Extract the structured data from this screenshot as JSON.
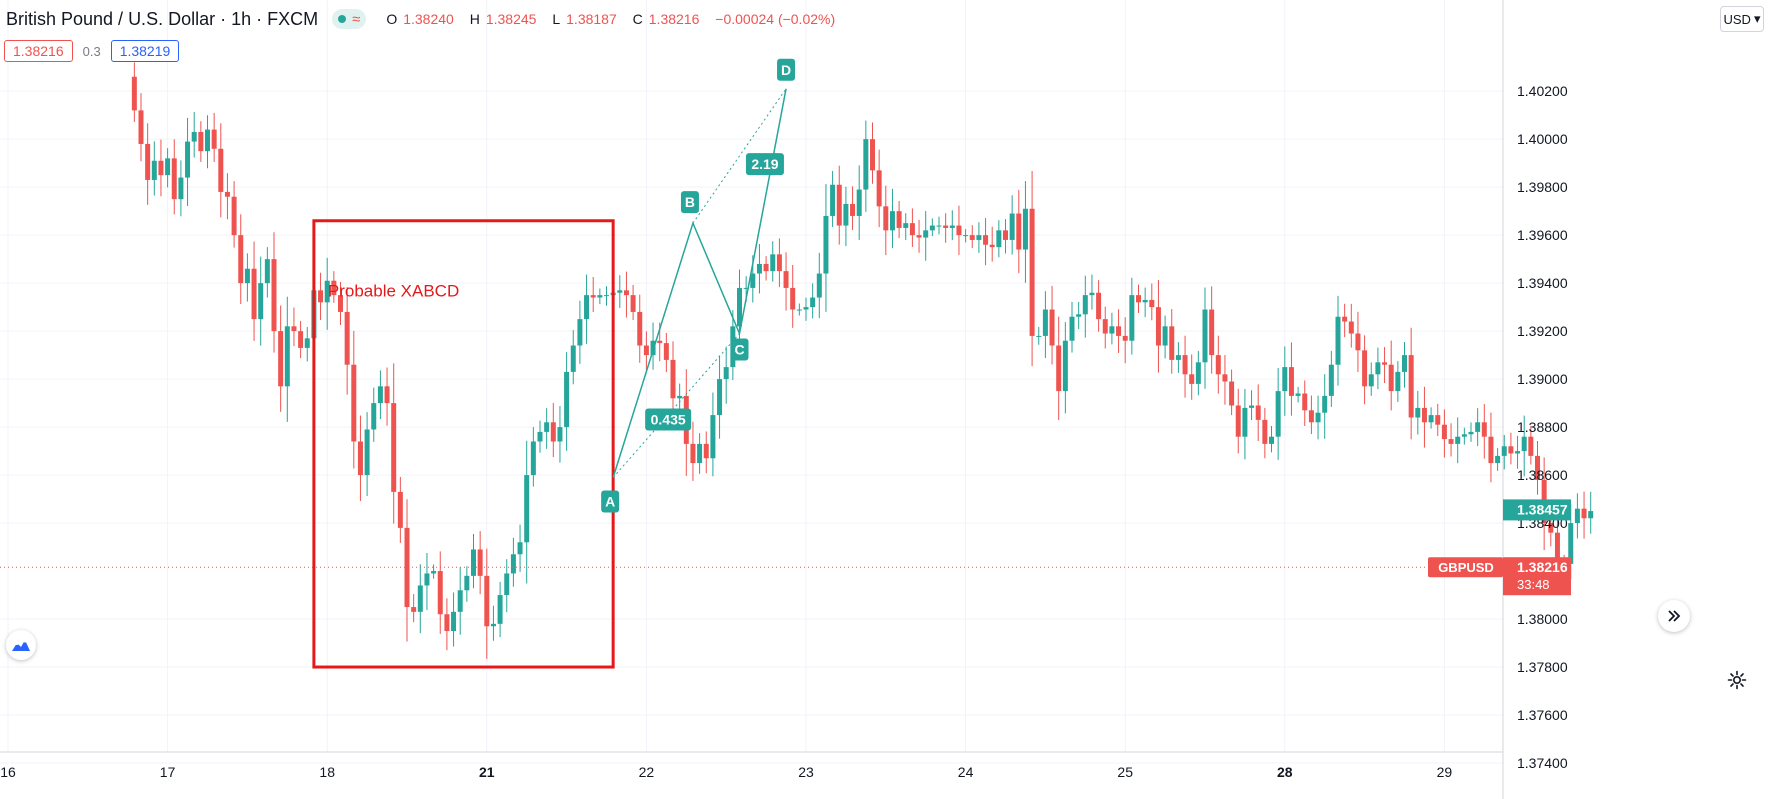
{
  "header": {
    "symbol_title": "British Pound / U.S. Dollar · 1h · FXCM",
    "ohlc": {
      "o_label": "O",
      "o": "1.38240",
      "h_label": "H",
      "h": "1.38245",
      "l_label": "L",
      "l": "1.38187",
      "c_label": "C",
      "c": "1.38216",
      "change": "−0.00024 (−0.02%)"
    },
    "sell_price": "1.38216",
    "spread": "0.3",
    "buy_price": "1.38219",
    "currency_button": "USD",
    "currency_caret": "▾"
  },
  "colors": {
    "up": "#26a69a",
    "down": "#ef5350",
    "pattern": "#26a69a",
    "box": "#e41a1a",
    "grid": "#f0f3fa",
    "axis_text": "#131722"
  },
  "chart_data": {
    "type": "candlestick",
    "x_ticks": [
      {
        "label": "16",
        "idx": 0
      },
      {
        "label": "17",
        "idx": 24
      },
      {
        "label": "18",
        "idx": 48
      },
      {
        "label": "21",
        "idx": 72
      },
      {
        "label": "22",
        "idx": 96
      },
      {
        "label": "23",
        "idx": 120
      },
      {
        "label": "24",
        "idx": 144
      },
      {
        "label": "25",
        "idx": 168
      },
      {
        "label": "28",
        "idx": 192
      },
      {
        "label": "29",
        "idx": 216
      }
    ],
    "bold_ticks": [
      "21",
      "28"
    ],
    "y_ticks": [
      "1.40200",
      "1.40000",
      "1.39800",
      "1.39600",
      "1.39400",
      "1.39200",
      "1.39000",
      "1.38800",
      "1.38600",
      "1.38400",
      "1.38000",
      "1.37800",
      "1.37600",
      "1.37400"
    ],
    "ylim": [
      1.3725,
      1.4058
    ],
    "candle_count": 232,
    "first_candle_index": 19,
    "closes": [
      1.4012,
      1.3998,
      1.3983,
      1.3991,
      1.3985,
      1.3992,
      1.3975,
      1.3984,
      1.3999,
      1.4003,
      1.3995,
      1.4004,
      1.3996,
      1.3978,
      1.3976,
      1.396,
      1.394,
      1.3946,
      1.3925,
      1.394,
      1.395,
      1.392,
      1.3897,
      1.3922,
      1.392,
      1.3913,
      1.3917,
      1.3937,
      1.3932,
      1.3941,
      1.3935,
      1.3928,
      1.3906,
      1.3874,
      1.386,
      1.3879,
      1.389,
      1.3897,
      1.389,
      1.3853,
      1.3838,
      1.3805,
      1.3803,
      1.3814,
      1.3819,
      1.382,
      1.3802,
      1.3795,
      1.3803,
      1.3812,
      1.3818,
      1.3829,
      1.3818,
      1.3797,
      1.3798,
      1.381,
      1.3819,
      1.3827,
      1.3832,
      1.386,
      1.3874,
      1.3878,
      1.3882,
      1.3874,
      1.388,
      1.3903,
      1.3914,
      1.3925,
      1.3935,
      1.3934,
      1.3935,
      1.3935,
      1.3936,
      1.3937,
      1.3935,
      1.3928,
      1.3914,
      1.391,
      1.3916,
      1.3915,
      1.3908,
      1.3892,
      1.3893,
      1.3873,
      1.3865,
      1.3873,
      1.3867,
      1.3885,
      1.39,
      1.3905,
      1.3922,
      1.3938,
      1.3938,
      1.3944,
      1.3948,
      1.3945,
      1.3952,
      1.3945,
      1.3938,
      1.3929,
      1.3929,
      1.393,
      1.3934,
      1.3944,
      1.3968,
      1.3981,
      1.3964,
      1.3973,
      1.3968,
      1.3979,
      1.4,
      1.3987,
      1.3972,
      1.3962,
      1.397,
      1.3963,
      1.3965,
      1.396,
      1.3959,
      1.3962,
      1.3964,
      1.3964,
      1.3963,
      1.3964,
      1.396,
      1.396,
      1.3958,
      1.396,
      1.3956,
      1.3955,
      1.3962,
      1.3958,
      1.3969,
      1.3954,
      1.3971,
      1.3918,
      1.3918,
      1.3929,
      1.3914,
      1.3895,
      1.3916,
      1.3926,
      1.3927,
      1.3935,
      1.3936,
      1.3925,
      1.3919,
      1.3922,
      1.3918,
      1.3916,
      1.3935,
      1.3932,
      1.3933,
      1.393,
      1.3914,
      1.3922,
      1.3908,
      1.391,
      1.3902,
      1.3898,
      1.3907,
      1.3929,
      1.391,
      1.3902,
      1.3899,
      1.3889,
      1.3876,
      1.3888,
      1.3889,
      1.3883,
      1.3873,
      1.3876,
      1.3895,
      1.3905,
      1.3893,
      1.3894,
      1.3887,
      1.3882,
      1.3886,
      1.3893,
      1.3906,
      1.3926,
      1.3924,
      1.3919,
      1.3912,
      1.3897,
      1.3902,
      1.3907,
      1.3906,
      1.3895,
      1.3903,
      1.391,
      1.3884,
      1.3888,
      1.3882,
      1.3885,
      1.3881,
      1.3875,
      1.3873,
      1.3876,
      1.3877,
      1.3878,
      1.3882,
      1.3876,
      1.3865,
      1.3868,
      1.3872,
      1.3869,
      1.387,
      1.3876,
      1.3868,
      1.3858,
      1.384,
      1.3836,
      1.3824,
      1.3823,
      1.384,
      1.3846,
      1.3842,
      1.3845
    ],
    "open_first": 1.4026,
    "xabcd_points": {
      "X": {
        "idx": 91,
        "price": 1.3859
      },
      "B": {
        "idx": 103,
        "price": 1.3965
      },
      "C": {
        "idx": 110,
        "price": 1.3919
      },
      "D": {
        "idx": 117,
        "price": 1.4021
      }
    },
    "pattern_labels": {
      "a": "A",
      "b": "B",
      "c": "C",
      "d": "D"
    },
    "ratios": {
      "xb": "0.435",
      "bd": "2.19"
    },
    "annotation_box": {
      "label": "Probable XABCD",
      "idx_start": 46,
      "idx_end": 91,
      "price_top": 1.3966,
      "price_bottom": 1.378
    },
    "last_price_label": {
      "symbol": "GBPUSD",
      "price": "1.38216",
      "countdown": "33:48",
      "value": 1.38216
    },
    "current_price_label": {
      "price": "1.38457",
      "value": 1.38457
    }
  }
}
